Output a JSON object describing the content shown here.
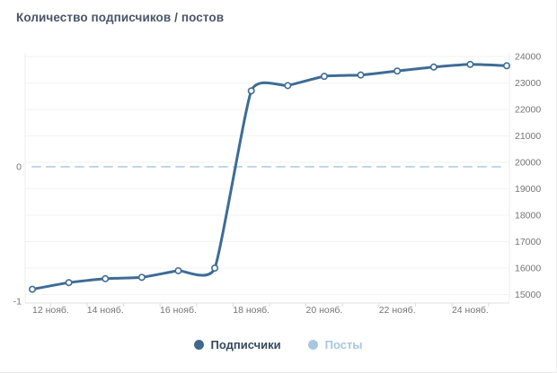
{
  "title": "Количество подписчиков / постов",
  "legend": {
    "items": [
      {
        "label": "Подписчики",
        "dot_color": "#41688c",
        "text_color": "#35495e"
      },
      {
        "label": "Посты",
        "dot_color": "#a7c6e2",
        "text_color": "#a7c6e2"
      }
    ]
  },
  "chart_data": {
    "type": "line",
    "x": [
      "12 нояб.",
      "13 нояб.",
      "14 нояб.",
      "15 нояб.",
      "16 нояб.",
      "17 нояб.",
      "18 нояб.",
      "19 нояб.",
      "20 нояб.",
      "21 нояб.",
      "22 нояб.",
      "23 нояб.",
      "24 нояб.",
      "25 нояб."
    ],
    "x_tick_labels": [
      "12 нояб.",
      "14 нояб.",
      "16 нояб.",
      "18 нояб.",
      "20 нояб.",
      "22 нояб.",
      "24 нояб."
    ],
    "series": [
      {
        "name": "Подписчики",
        "axis": "right",
        "color": "#3e6c95",
        "style": "solid",
        "markers": true,
        "values": [
          15200,
          15450,
          15600,
          15650,
          15900,
          16000,
          22700,
          22900,
          23250,
          23300,
          23450,
          23600,
          23700,
          23650
        ]
      },
      {
        "name": "Посты",
        "axis": "left",
        "color": "#bcd8ec",
        "style": "dashed",
        "markers": false,
        "values": [
          0,
          0,
          0,
          0,
          0,
          0,
          0,
          0,
          0,
          0,
          0,
          0,
          0,
          0
        ]
      }
    ],
    "right_axis": {
      "min": 15000,
      "max": 24000,
      "step": 1000,
      "labels": [
        "24000",
        "23000",
        "22000",
        "21000",
        "20000",
        "19000",
        "18000",
        "17000",
        "16000",
        "15000"
      ]
    },
    "left_axis": {
      "labels": [
        "0",
        "-1"
      ],
      "values": [
        0,
        -1
      ]
    },
    "grid": true,
    "legend_position": "bottom",
    "axis_text_color": "#757575"
  }
}
